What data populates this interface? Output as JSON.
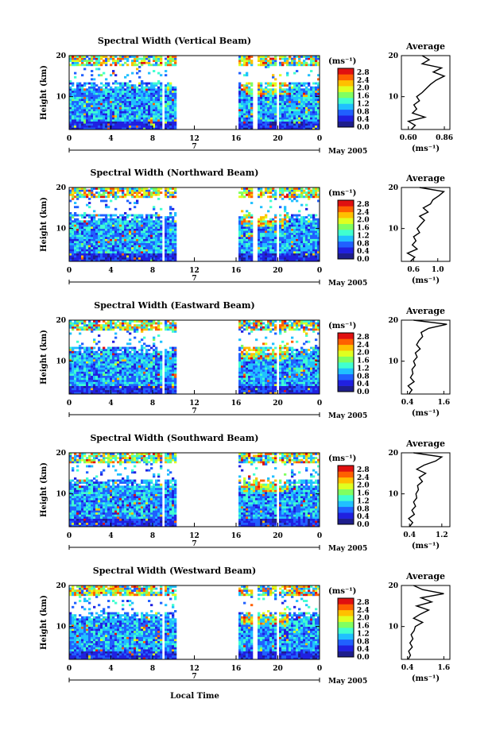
{
  "figure": {
    "xlabel": "Local Time",
    "date_label": "May 2005",
    "day_label": "7",
    "colorbar_unit": "(ms⁻¹)",
    "profile_title": "Average",
    "profile_unit": "(ms⁻¹)"
  },
  "chart_data": [
    {
      "type": "heatmap",
      "title": "Spectral Width (Vertical Beam)",
      "xlabel": "",
      "ylabel": "Height (km)",
      "xticks": [
        "0",
        "4",
        "8",
        "12",
        "16",
        "20",
        "0"
      ],
      "yticks": [
        "20",
        "10"
      ],
      "xlim": [
        0,
        24
      ],
      "ylim": [
        2,
        20
      ],
      "data_gaps_hours": [
        [
          8.8,
          9.1
        ],
        [
          10.4,
          16.2
        ],
        [
          17.7,
          18.0
        ],
        [
          19.9,
          20.1
        ]
      ],
      "colorbar": {
        "ticks": [
          "2.8",
          "2.4",
          "2.0",
          "1.6",
          "1.2",
          "0.8",
          "0.4",
          "0.0"
        ],
        "range": [
          0,
          3.0
        ]
      },
      "colors": [
        "#1e1e8c",
        "#2020e0",
        "#2060ff",
        "#20c0ff",
        "#40ffd0",
        "#80ff60",
        "#e0ff20",
        "#ffc000",
        "#ff6000",
        "#e01010"
      ],
      "profile": {
        "type": "line",
        "title": "Average",
        "xticks": [
          "0.60",
          "0.86"
        ],
        "xlim": [
          0.55,
          0.9
        ],
        "heights_km": [
          2,
          3,
          4,
          5,
          6,
          7,
          8,
          9,
          10,
          11,
          12,
          13,
          14,
          15,
          16,
          17,
          18,
          19,
          20
        ],
        "values": [
          0.62,
          0.65,
          0.6,
          0.72,
          0.63,
          0.66,
          0.64,
          0.68,
          0.66,
          0.7,
          0.73,
          0.76,
          0.8,
          0.86,
          0.78,
          0.84,
          0.7,
          0.75,
          0.7
        ]
      }
    },
    {
      "type": "heatmap",
      "title": "Spectral Width (Northward Beam)",
      "ylabel": "Height (km)",
      "xticks": [
        "0",
        "4",
        "8",
        "12",
        "16",
        "20",
        "0"
      ],
      "yticks": [
        "20",
        "10"
      ],
      "xlim": [
        0,
        24
      ],
      "ylim": [
        2,
        20
      ],
      "data_gaps_hours": [
        [
          8.8,
          9.1
        ],
        [
          10.4,
          16.2
        ],
        [
          17.7,
          18.0
        ],
        [
          19.9,
          20.1
        ]
      ],
      "colorbar": {
        "ticks": [
          "2.8",
          "2.4",
          "2.0",
          "1.6",
          "1.2",
          "0.8",
          "0.4",
          "0.0"
        ],
        "range": [
          0,
          3.0
        ]
      },
      "profile": {
        "type": "line",
        "title": "Average",
        "xticks": [
          "0.6",
          "1.0"
        ],
        "xlim": [
          0.4,
          1.2
        ],
        "heights_km": [
          2,
          3,
          4,
          5,
          6,
          7,
          8,
          9,
          10,
          11,
          12,
          13,
          14,
          15,
          16,
          17,
          18,
          19,
          20
        ],
        "values": [
          0.55,
          0.62,
          0.5,
          0.66,
          0.58,
          0.64,
          0.6,
          0.7,
          0.66,
          0.72,
          0.78,
          0.7,
          0.84,
          0.76,
          0.88,
          0.92,
          1.02,
          1.1,
          0.7
        ]
      }
    },
    {
      "type": "heatmap",
      "title": "Spectral Width (Eastward Beam)",
      "ylabel": "Height (km)",
      "xticks": [
        "0",
        "4",
        "8",
        "12",
        "16",
        "20",
        "0"
      ],
      "yticks": [
        "20",
        "10"
      ],
      "xlim": [
        0,
        24
      ],
      "ylim": [
        2,
        20
      ],
      "data_gaps_hours": [
        [
          8.8,
          9.1
        ],
        [
          10.4,
          16.2
        ],
        [
          19.9,
          20.1
        ]
      ],
      "colorbar": {
        "ticks": [
          "2.8",
          "2.4",
          "2.0",
          "1.6",
          "1.2",
          "0.8",
          "0.4",
          "0.0"
        ],
        "range": [
          0,
          3.0
        ]
      },
      "profile": {
        "type": "line",
        "title": "Average",
        "xticks": [
          "0.4",
          "1.6"
        ],
        "xlim": [
          0.2,
          1.8
        ],
        "heights_km": [
          2,
          3,
          4,
          5,
          6,
          7,
          8,
          9,
          10,
          11,
          12,
          13,
          14,
          15,
          16,
          17,
          18,
          19,
          20
        ],
        "values": [
          0.45,
          0.55,
          0.42,
          0.62,
          0.5,
          0.58,
          0.55,
          0.66,
          0.6,
          0.72,
          0.66,
          0.82,
          0.7,
          0.78,
          0.9,
          0.85,
          1.1,
          1.7,
          0.6
        ]
      }
    },
    {
      "type": "heatmap",
      "title": "Spectral Width (Southward Beam)",
      "ylabel": "Height (km)",
      "xticks": [
        "0",
        "4",
        "8",
        "12",
        "16",
        "20",
        "0"
      ],
      "yticks": [
        "20",
        "10"
      ],
      "xlim": [
        0,
        24
      ],
      "ylim": [
        2,
        20
      ],
      "data_gaps_hours": [
        [
          8.8,
          9.1
        ],
        [
          10.4,
          16.2
        ],
        [
          19.9,
          20.1
        ]
      ],
      "colorbar": {
        "ticks": [
          "2.8",
          "2.4",
          "2.0",
          "1.6",
          "1.2",
          "0.8",
          "0.4",
          "0.0"
        ],
        "range": [
          0,
          3.0
        ]
      },
      "profile": {
        "type": "line",
        "title": "Average",
        "xticks": [
          "0.4",
          "1.2"
        ],
        "xlim": [
          0.2,
          1.4
        ],
        "heights_km": [
          2,
          3,
          4,
          5,
          6,
          7,
          8,
          9,
          10,
          11,
          12,
          13,
          14,
          15,
          16,
          17,
          18,
          19,
          20
        ],
        "values": [
          0.4,
          0.48,
          0.38,
          0.52,
          0.46,
          0.55,
          0.5,
          0.58,
          0.56,
          0.62,
          0.6,
          0.72,
          0.64,
          0.8,
          0.58,
          0.76,
          1.05,
          1.2,
          0.5
        ]
      }
    },
    {
      "type": "heatmap",
      "title": "Spectral Width (Westward Beam)",
      "ylabel": "Height (km)",
      "xlabel": "Local Time",
      "xticks": [
        "0",
        "4",
        "8",
        "12",
        "16",
        "20",
        "0"
      ],
      "yticks": [
        "20",
        "10"
      ],
      "xlim": [
        0,
        24
      ],
      "ylim": [
        2,
        20
      ],
      "data_gaps_hours": [
        [
          8.8,
          9.1
        ],
        [
          10.4,
          16.2
        ],
        [
          17.7,
          18.0
        ],
        [
          19.9,
          20.1
        ]
      ],
      "colorbar": {
        "ticks": [
          "2.8",
          "2.4",
          "2.0",
          "1.6",
          "1.2",
          "0.8",
          "0.4",
          "0.0"
        ],
        "range": [
          0,
          3.0
        ]
      },
      "profile": {
        "type": "line",
        "title": "Average",
        "xticks": [
          "0.4",
          "1.6"
        ],
        "xlim": [
          0.2,
          1.8
        ],
        "heights_km": [
          2,
          3,
          4,
          5,
          6,
          7,
          8,
          9,
          10,
          11,
          12,
          13,
          14,
          15,
          16,
          17,
          18,
          19,
          20
        ],
        "values": [
          0.42,
          0.5,
          0.44,
          0.56,
          0.48,
          0.58,
          0.52,
          0.62,
          0.66,
          0.9,
          0.6,
          0.82,
          1.1,
          0.7,
          1.2,
          0.85,
          1.6,
          0.9,
          0.6
        ]
      }
    }
  ]
}
